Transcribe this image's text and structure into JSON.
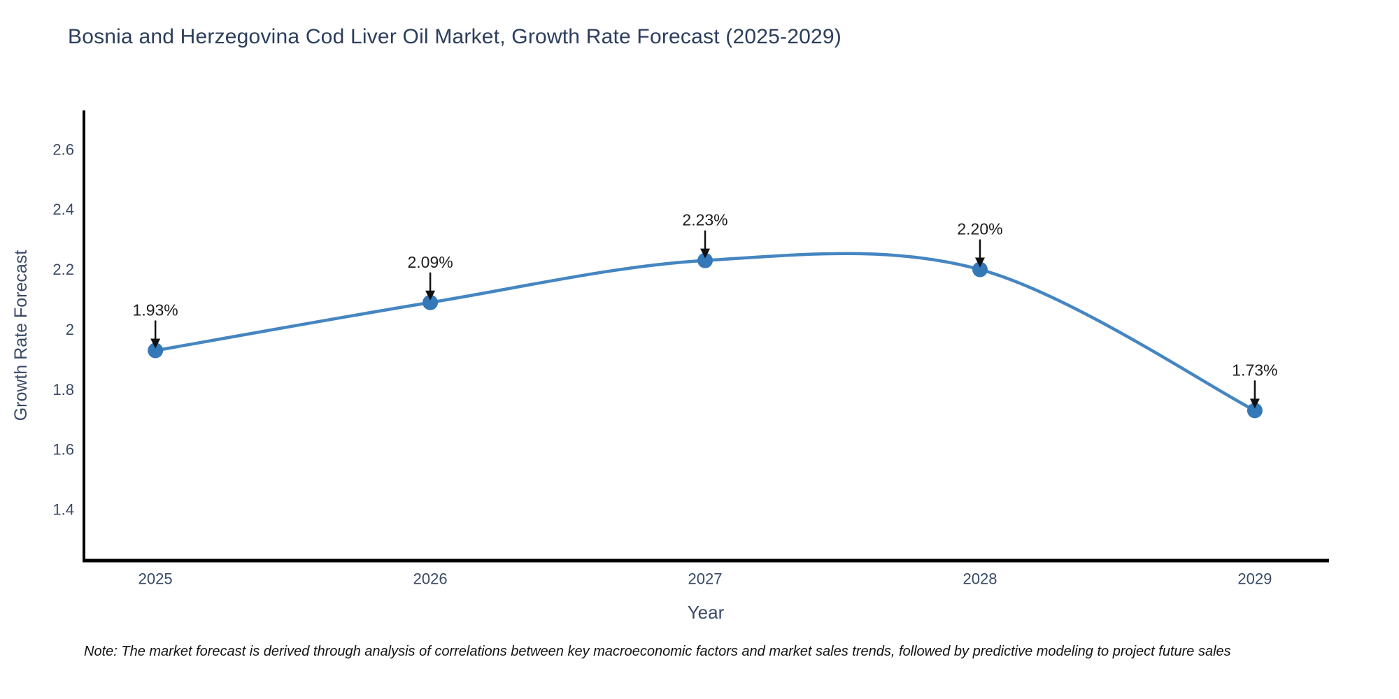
{
  "note": "Note: The market forecast is derived through analysis of correlations between key macroeconomic factors and market sales trends, followed by predictive modeling to project future sales",
  "chart_data": {
    "type": "line",
    "title": "Bosnia and Herzegovina Cod Liver Oil Market, Growth Rate Forecast (2025-2029)",
    "xlabel": "Year",
    "ylabel": "Growth Rate Forecast",
    "x": [
      2025,
      2026,
      2027,
      2028,
      2029
    ],
    "xtick_labels": [
      "2025",
      "2026",
      "2027",
      "2028",
      "2029"
    ],
    "series": [
      {
        "name": "Growth Rate Forecast",
        "values": [
          1.93,
          2.09,
          2.23,
          2.2,
          1.73
        ],
        "point_labels": [
          "1.93%",
          "2.09%",
          "2.23%",
          "2.20%",
          "1.73%"
        ]
      }
    ],
    "line_shape": "spline",
    "grid": false,
    "legend": false,
    "xlim": [
      2024.74,
      2029.27
    ],
    "ylim": [
      1.23,
      2.73
    ],
    "yticks": [
      1.4,
      1.6,
      1.8,
      2.0,
      2.2,
      2.4,
      2.6
    ],
    "ytick_labels": [
      "1.4",
      "1.6",
      "1.8",
      "2",
      "2.2",
      "2.4",
      "2.6"
    ],
    "colors": {
      "line": "#4586c1",
      "marker": "#3578b8",
      "axis": "#000000",
      "tick_text": "#3a4a66",
      "annotation_text": "#1c1c1c",
      "arrow": "#111111"
    }
  }
}
